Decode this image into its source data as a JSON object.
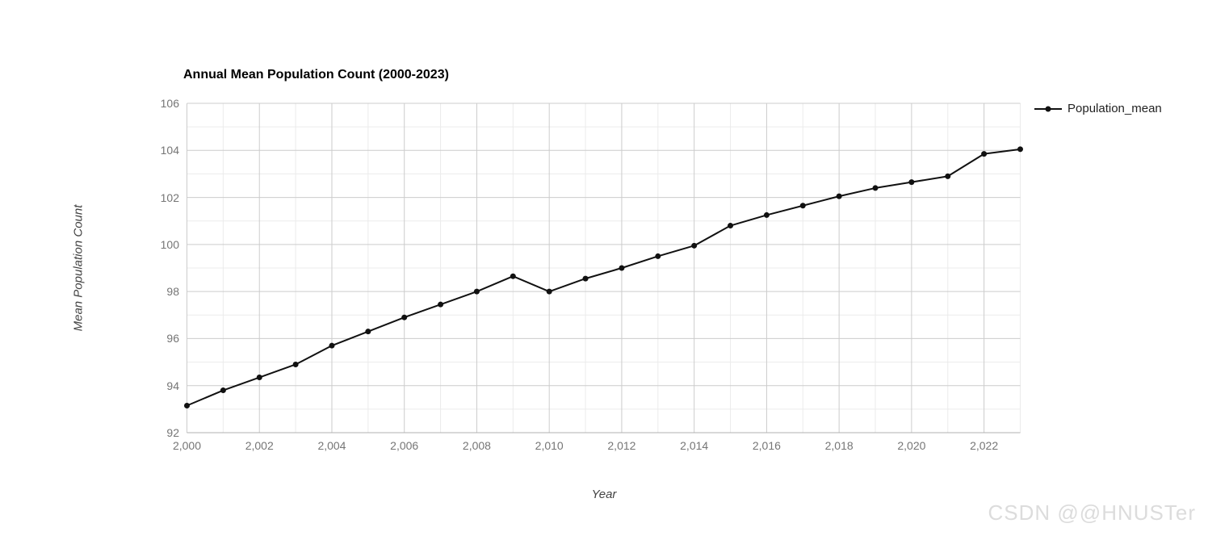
{
  "chart_data": {
    "type": "line",
    "title": "Annual Mean Population Count (2000-2023)",
    "xlabel": "Year",
    "ylabel": "Mean Population Count",
    "x": [
      2000,
      2001,
      2002,
      2003,
      2004,
      2005,
      2006,
      2007,
      2008,
      2009,
      2010,
      2011,
      2012,
      2013,
      2014,
      2015,
      2016,
      2017,
      2018,
      2019,
      2020,
      2021,
      2022,
      2023
    ],
    "series": [
      {
        "name": "Population_mean",
        "color": "#111111",
        "marker": "circle",
        "values": [
          93.15,
          93.8,
          94.35,
          94.9,
          95.7,
          96.3,
          96.9,
          97.45,
          98.0,
          98.65,
          98.0,
          98.55,
          99.0,
          99.5,
          99.95,
          100.8,
          101.25,
          101.65,
          102.05,
          102.4,
          102.65,
          102.9,
          103.85,
          104.05
        ]
      }
    ],
    "xlim": [
      2000,
      2023
    ],
    "ylim": [
      92,
      106
    ],
    "x_ticks": {
      "values": [
        2000,
        2002,
        2004,
        2006,
        2008,
        2010,
        2012,
        2014,
        2016,
        2018,
        2020,
        2022
      ],
      "labels": [
        "2,000",
        "2,002",
        "2,004",
        "2,006",
        "2,008",
        "2,010",
        "2,012",
        "2,014",
        "2,016",
        "2,018",
        "2,020",
        "2,022"
      ]
    },
    "y_ticks": {
      "values": [
        92,
        94,
        96,
        98,
        100,
        102,
        104,
        106
      ],
      "labels": [
        "92",
        "94",
        "96",
        "98",
        "100",
        "102",
        "104",
        "106"
      ]
    },
    "grid": {
      "major_color": "#cccccc",
      "minor_color": "#ebebeb",
      "x_minor_step": 1,
      "y_minor_step": 1,
      "baseline_color": "#b0b0b0"
    },
    "legend": {
      "position": "right",
      "entries": [
        {
          "label": "Population_mean",
          "color": "#111111",
          "marker": "line-dot"
        }
      ]
    }
  },
  "watermark": {
    "text": "CSDN @@HNUSTer",
    "color": "#dcdcdc"
  }
}
